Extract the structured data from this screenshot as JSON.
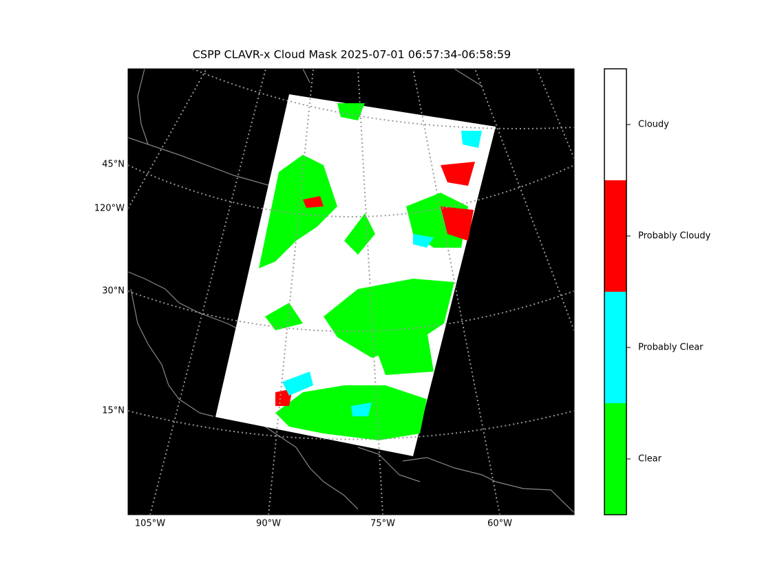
{
  "title": "CSPP CLAVR-x Cloud Mask 2025-07-01 06:57:34-06:58:59",
  "lat_labels": [
    "45°N",
    "120°W",
    "30°N",
    "15°N"
  ],
  "lon_labels": [
    "105°W",
    "90°W",
    "75°W",
    "60°W"
  ],
  "colorbar": [
    {
      "label": "Clear",
      "color": "#00ff00"
    },
    {
      "label": "Probably Clear",
      "color": "#00ffff"
    },
    {
      "label": "Probably Cloudy",
      "color": "#ff0000"
    },
    {
      "label": "Cloudy",
      "color": "#ffffff"
    }
  ]
}
